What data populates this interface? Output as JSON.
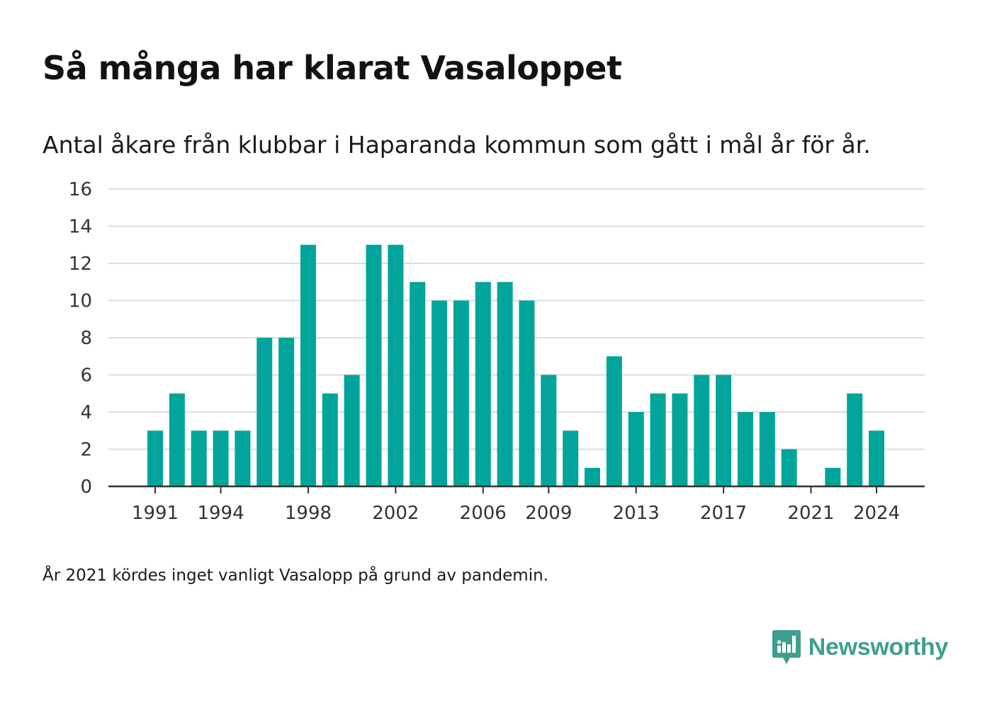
{
  "title": "Så många har klarat Vasaloppet",
  "subtitle": "Antal åkare från klubbar i Haparanda kommun som gått i mål år för år.",
  "note": "År 2021 kördes inget vanligt Vasalopp på grund av pandemin.",
  "brand": {
    "name": "Newsworthy",
    "icon": "bar-chart-speech-bubble-icon",
    "color": "#3f9e8f"
  },
  "chart_data": {
    "type": "bar",
    "bar_color": "#00a49a",
    "grid": true,
    "ylim": [
      0,
      16
    ],
    "yticks": [
      "0",
      "2",
      "4",
      "6",
      "8",
      "10",
      "12",
      "14",
      "16"
    ],
    "xtick_labels": [
      "1991",
      "1994",
      "1998",
      "2002",
      "2006",
      "2009",
      "2013",
      "2017",
      "2021",
      "2024"
    ],
    "categories": [
      "1991",
      "1992",
      "1993",
      "1994",
      "1995",
      "1996",
      "1997",
      "1998",
      "1999",
      "2000",
      "2001",
      "2002",
      "2003",
      "2004",
      "2005",
      "2006",
      "2007",
      "2008",
      "2009",
      "2010",
      "2011",
      "2012",
      "2013",
      "2014",
      "2015",
      "2016",
      "2017",
      "2018",
      "2019",
      "2020",
      "2021",
      "2022",
      "2023",
      "2024"
    ],
    "values": [
      3,
      5,
      3,
      3,
      3,
      8,
      8,
      13,
      5,
      6,
      13,
      13,
      11,
      10,
      10,
      11,
      11,
      10,
      6,
      3,
      1,
      7,
      4,
      5,
      5,
      6,
      6,
      4,
      4,
      2,
      0,
      1,
      5,
      3
    ]
  }
}
